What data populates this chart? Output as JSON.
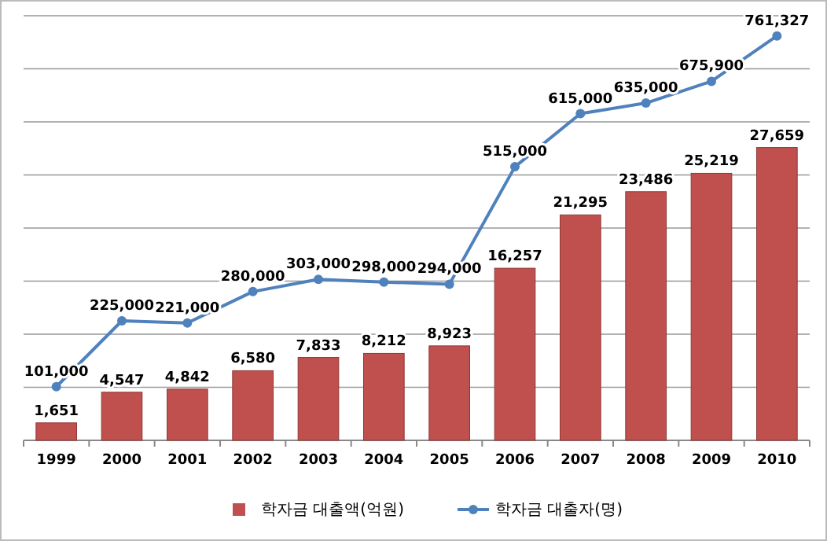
{
  "chart_data": {
    "type": "bar",
    "categories": [
      "1999",
      "2000",
      "2001",
      "2002",
      "2003",
      "2004",
      "2005",
      "2006",
      "2007",
      "2008",
      "2009",
      "2010"
    ],
    "series": [
      {
        "name": "학자금 대출액(억원)",
        "color": "#c0504d",
        "values": [
          1651,
          4547,
          4842,
          6580,
          7833,
          8212,
          8923,
          16257,
          21295,
          23486,
          25219,
          27659
        ],
        "value_labels": [
          "1,651",
          "4,547",
          "4,842",
          "6,580",
          "7,833",
          "8,212",
          "8,923",
          "16,257",
          "21,295",
          "23,486",
          "25,219",
          "27,659"
        ]
      },
      {
        "name": "학자금 대출자(명)",
        "type": "line",
        "axis": "y2",
        "color": "#4f81bd",
        "values": [
          101000,
          225000,
          221000,
          280000,
          303000,
          298000,
          294000,
          515000,
          615000,
          635000,
          675900,
          761327
        ],
        "value_labels": [
          "101,000",
          "225,000",
          "221,000",
          "280,000",
          "303,000",
          "298,000",
          "294,000",
          "515,000",
          "615,000",
          "635,000",
          "675,900",
          "761,327"
        ]
      }
    ],
    "grid": "y",
    "legend": "bottom",
    "marker": "circle",
    "tick_labels": "x"
  }
}
